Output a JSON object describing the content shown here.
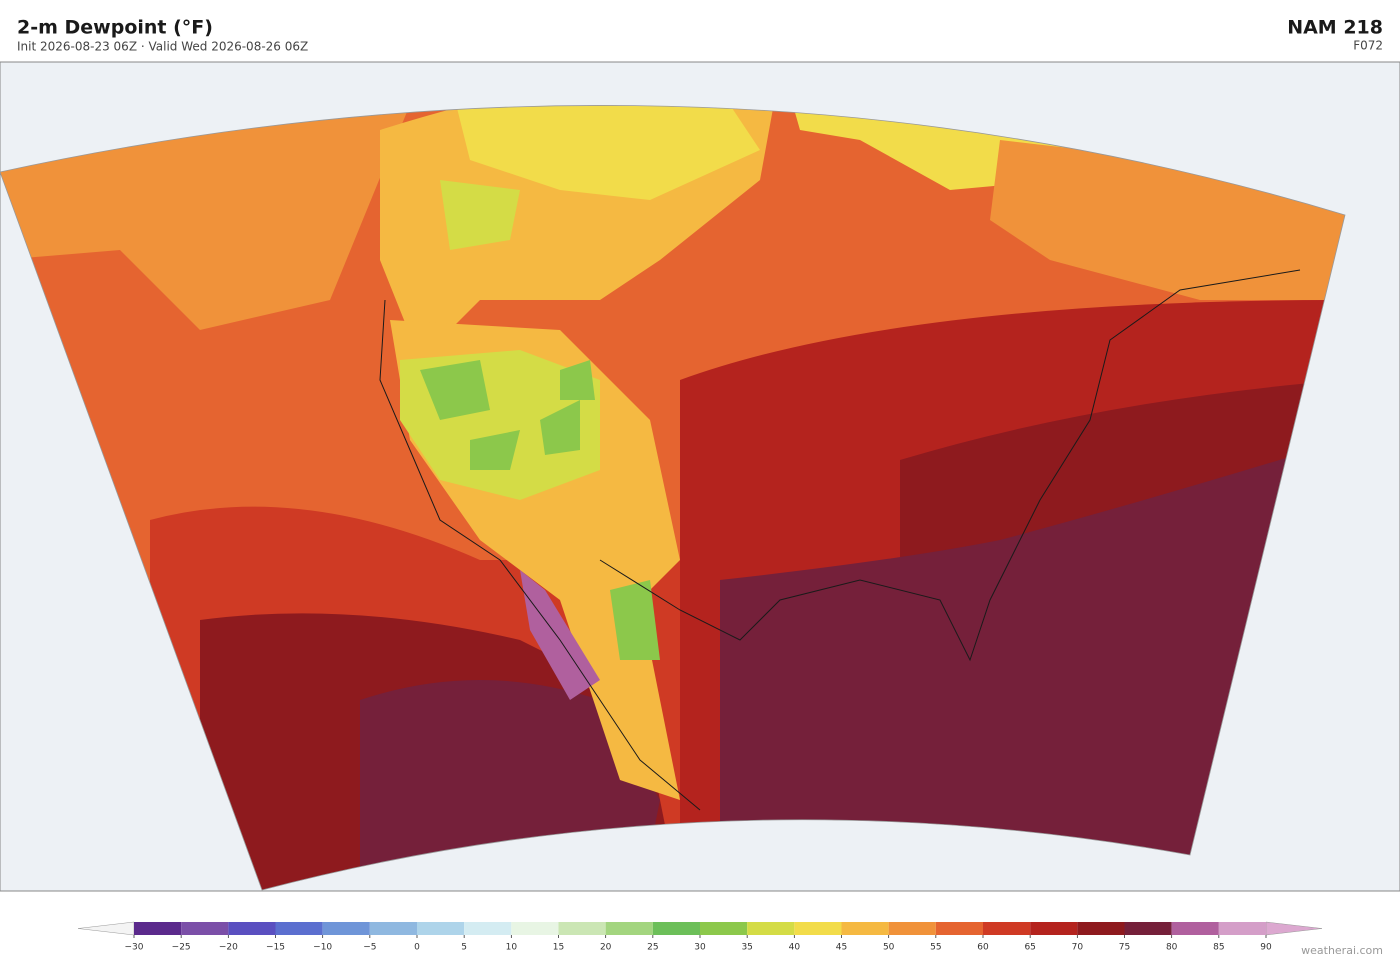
{
  "header": {
    "title": "2-m Dewpoint  (°F)",
    "subtitle": "Init 2026-08-23 06Z  ·  Valid Wed 2026-08-26 06Z",
    "model": "NAM  218",
    "forecast_hour": "F072"
  },
  "colorbar": {
    "ticks": [
      {
        "value": -30,
        "label": "−30"
      },
      {
        "value": -25,
        "label": "−25"
      },
      {
        "value": -20,
        "label": "−20"
      },
      {
        "value": -15,
        "label": "−15"
      },
      {
        "value": -10,
        "label": "−10"
      },
      {
        "value": -5,
        "label": "−5"
      },
      0,
      5,
      10,
      15,
      20,
      25,
      30,
      35,
      40,
      45,
      50,
      55,
      60,
      65,
      70,
      75,
      80,
      85,
      90
    ],
    "colors": [
      "#5b2a8c",
      "#7b4fa8",
      "#5a4fc0",
      "#5b6fcf",
      "#6f95d8",
      "#8fb8e0",
      "#aed4ea",
      "#d4ecf2",
      "#e8f5e4",
      "#cbe6b4",
      "#a3d57f",
      "#6cbf59",
      "#8cc84b",
      "#d4dc46",
      "#f2dc4a",
      "#f5b942",
      "#f0923a",
      "#e56430",
      "#cf3a24",
      "#b4231e",
      "#8e1a1e",
      "#75203a",
      "#b0609e",
      "#d49ec8"
    ],
    "under_color": "#f4f4f4",
    "over_color": "#dca8d0"
  },
  "watermark": "weatherai.com"
}
